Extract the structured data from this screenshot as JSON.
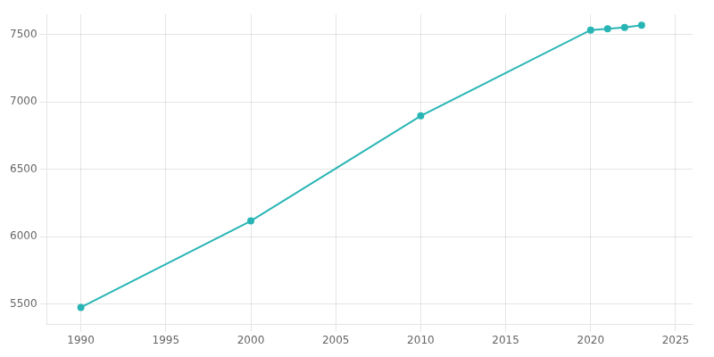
{
  "chart_data": {
    "type": "line",
    "x": [
      1990,
      2000,
      2010,
      2020,
      2021,
      2022,
      2023
    ],
    "values": [
      5477,
      6118,
      6897,
      7533,
      7543,
      7553,
      7569
    ],
    "color": "#2ab5b5",
    "marker": "circle",
    "xlim": [
      1988,
      2026
    ],
    "ylim": [
      5350,
      7650
    ],
    "xticks": [
      1990,
      1995,
      2000,
      2005,
      2010,
      2015,
      2020,
      2025
    ],
    "yticks": [
      5500,
      6000,
      6500,
      7000,
      7500
    ],
    "grid": true
  }
}
